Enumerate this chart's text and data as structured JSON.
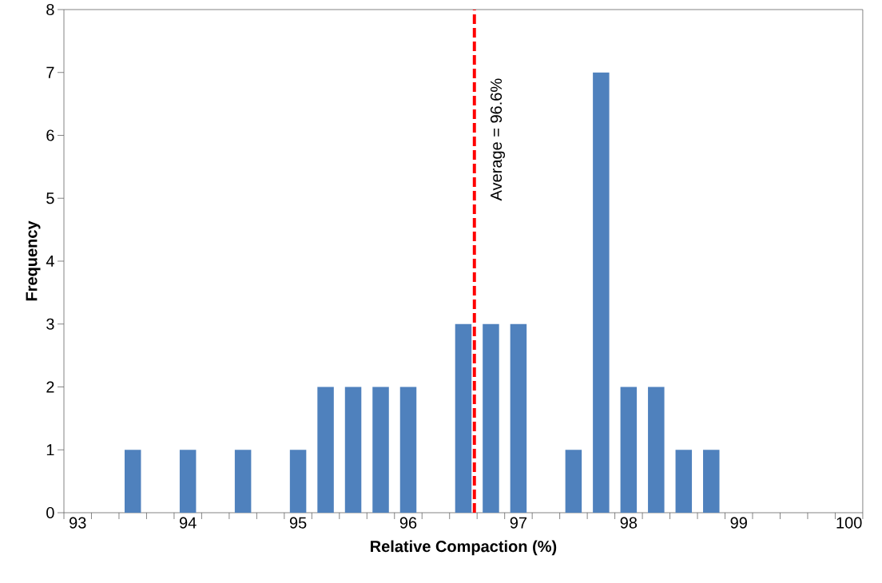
{
  "chart_data": {
    "type": "bar",
    "xlabel": "Relative Compaction (%)",
    "ylabel": "Frequency",
    "x": [
      93.5,
      94,
      94.5,
      95,
      95.25,
      95.5,
      95.75,
      96,
      96.5,
      96.75,
      97,
      97.5,
      97.75,
      98,
      98.25,
      98.5,
      98.75
    ],
    "values": [
      1,
      1,
      1,
      1,
      2,
      2,
      2,
      2,
      3,
      3,
      3,
      1,
      7,
      2,
      2,
      1,
      1
    ],
    "color": "#4f81bd",
    "xlim": [
      92.875,
      100.125
    ],
    "xticks": [
      93,
      94,
      95,
      96,
      97,
      98,
      99,
      100,
      {
        "value": 92.875,
        "label": null
      },
      {
        "value": 93.125,
        "label": null
      },
      {
        "value": 93.375,
        "label": null
      },
      {
        "value": 93.625,
        "label": null
      },
      {
        "value": 93.875,
        "label": null
      },
      {
        "value": 94.125,
        "label": null
      },
      {
        "value": 94.375,
        "label": null
      },
      {
        "value": 94.625,
        "label": null
      },
      {
        "value": 94.875,
        "label": null
      },
      {
        "value": 95.125,
        "label": null
      },
      {
        "value": 95.375,
        "label": null
      },
      {
        "value": 95.625,
        "label": null
      },
      {
        "value": 95.875,
        "label": null
      },
      {
        "value": 96.125,
        "label": null
      },
      {
        "value": 96.375,
        "label": null
      },
      {
        "value": 96.625,
        "label": null
      },
      {
        "value": 96.875,
        "label": null
      },
      {
        "value": 97.125,
        "label": null
      },
      {
        "value": 97.375,
        "label": null
      },
      {
        "value": 97.625,
        "label": null
      },
      {
        "value": 97.875,
        "label": null
      },
      {
        "value": 98.125,
        "label": null
      },
      {
        "value": 98.375,
        "label": null
      },
      {
        "value": 98.625,
        "label": null
      },
      {
        "value": 98.875,
        "label": null
      },
      {
        "value": 99.125,
        "label": null
      },
      {
        "value": 99.375,
        "label": null
      },
      {
        "value": 99.625,
        "label": null
      },
      {
        "value": 99.875,
        "label": null
      },
      {
        "value": 100.125,
        "label": null
      }
    ],
    "ylim": [
      0,
      8
    ],
    "yticks": [
      0,
      1,
      2,
      3,
      4,
      5,
      6,
      7,
      8
    ],
    "ref_lines": [
      {
        "axis": "x",
        "value": 96.6,
        "label": "Average = 96.6%",
        "color": "#ff0000",
        "line_style": "dashed"
      }
    ]
  }
}
